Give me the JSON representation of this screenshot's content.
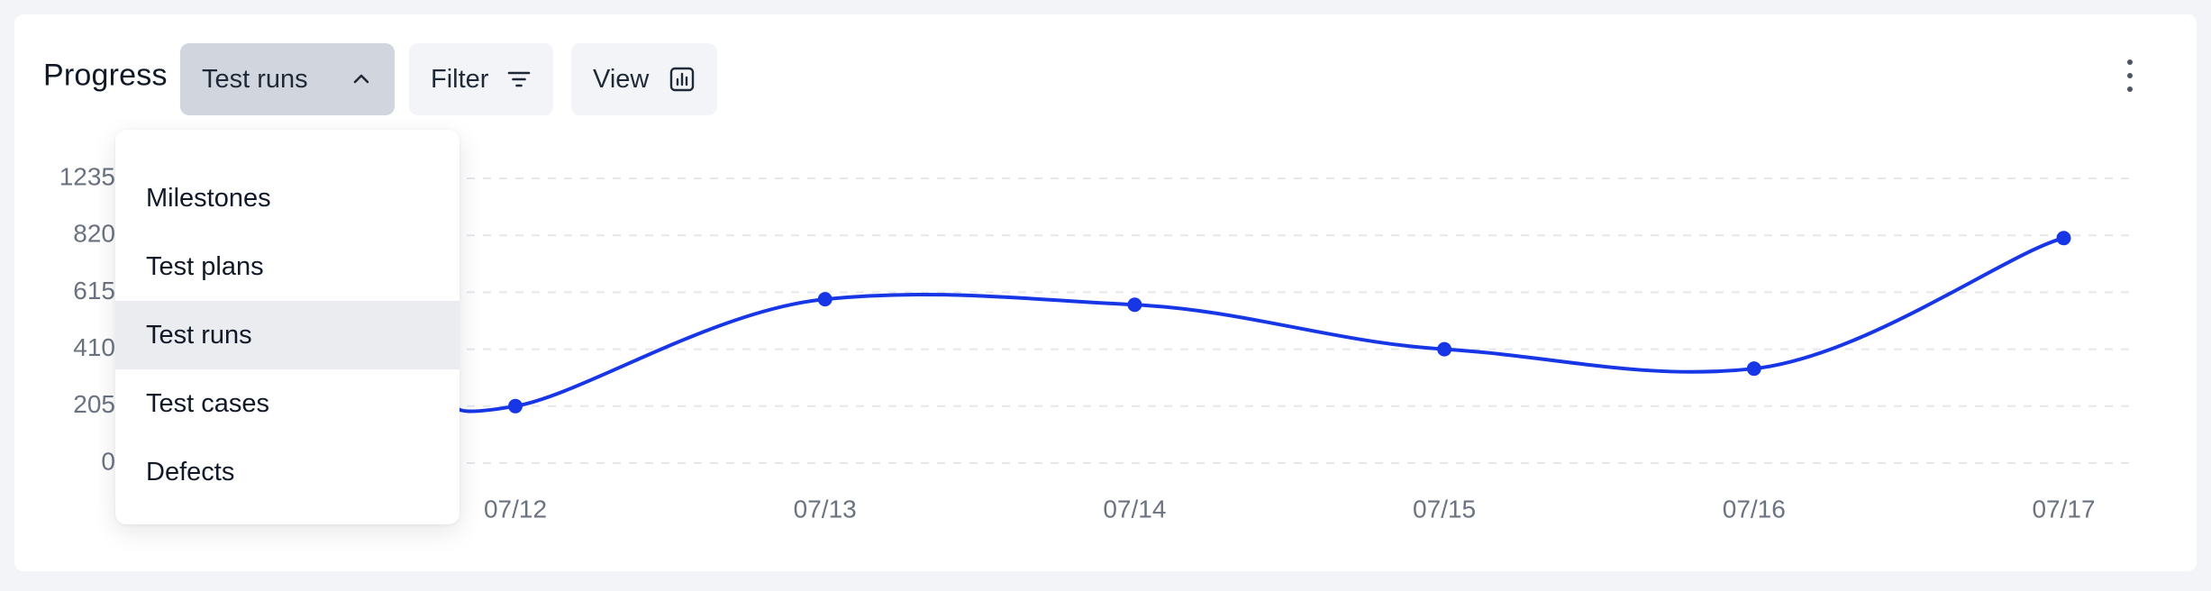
{
  "header": {
    "title": "Progress",
    "dropdown": {
      "selected_label": "Test runs",
      "icon": "chevron-up-icon"
    },
    "filter_button": {
      "label": "Filter",
      "icon": "filter-lines-icon"
    },
    "view_button": {
      "label": "View",
      "icon": "bar-chart-icon"
    },
    "more_icon": "more-vertical-icon"
  },
  "menu": {
    "items": [
      {
        "label": "Milestones",
        "selected": false
      },
      {
        "label": "Test plans",
        "selected": false
      },
      {
        "label": "Test runs",
        "selected": true
      },
      {
        "label": "Test cases",
        "selected": false
      },
      {
        "label": "Defects",
        "selected": false
      }
    ]
  },
  "chart_data": {
    "type": "line",
    "title": "",
    "xlabel": "",
    "ylabel": "",
    "y_ticks": [
      "0",
      "205",
      "410",
      "615",
      "820",
      "1235"
    ],
    "x": [
      "07/12",
      "07/13",
      "07/14",
      "07/15",
      "07/16",
      "07/17"
    ],
    "series": [
      {
        "values": [
          205,
          590,
          570,
          410,
          340,
          810
        ]
      }
    ],
    "grid": {
      "horizontal": true,
      "style": "dashed"
    },
    "line_color": "#1737e6",
    "grid_color": "#e5e7eb",
    "tick_color": "#6b7280"
  }
}
